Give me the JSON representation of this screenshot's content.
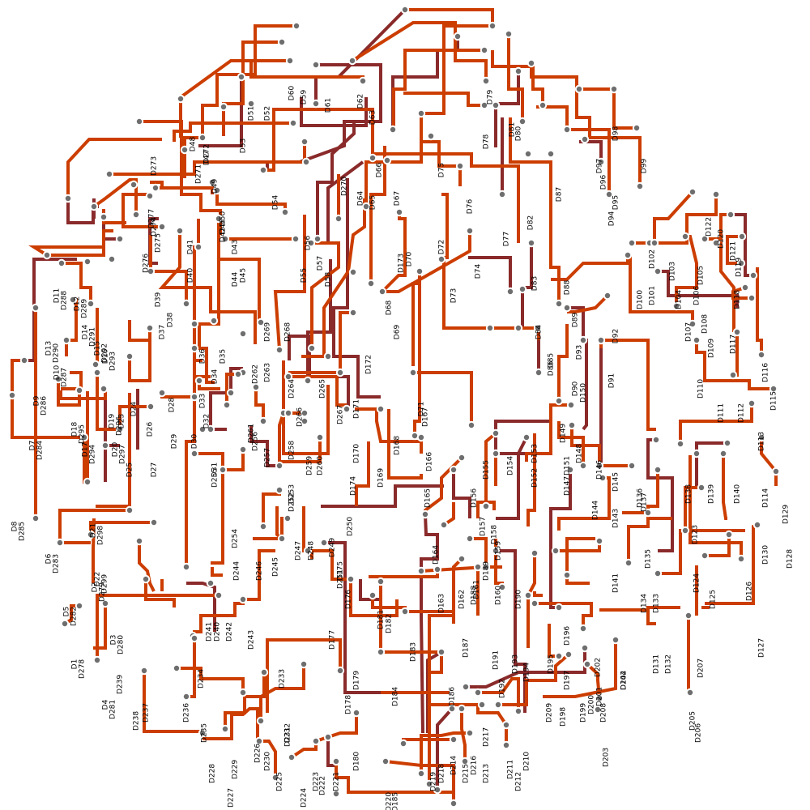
{
  "diagram": {
    "colors": {
      "wire_primary": "#cc3d00",
      "wire_secondary": "#8a2a2a",
      "pin": "#6e6e6e",
      "background": "#ffffff"
    },
    "labels": [
      "D1",
      "D2",
      "D3",
      "D4",
      "D5",
      "D6",
      "D7",
      "D8",
      "D9",
      "D10",
      "D11",
      "D12",
      "D13",
      "D14",
      "D15",
      "D16",
      "D17",
      "D18",
      "D19",
      "D20",
      "D21",
      "D22",
      "D23",
      "D24",
      "D25",
      "D26",
      "D27",
      "D28",
      "D29",
      "D30",
      "D31",
      "D32",
      "D33",
      "D34",
      "D35",
      "D36",
      "D37",
      "D38",
      "D39",
      "D40",
      "D41",
      "D42",
      "D43",
      "D44",
      "D45",
      "D46",
      "D47",
      "D48",
      "D49",
      "D50",
      "D51",
      "D52",
      "D53",
      "D54",
      "D55",
      "D56",
      "D57",
      "D58",
      "D59",
      "D60",
      "D61",
      "D62",
      "D63",
      "D64",
      "D65",
      "D66",
      "D67",
      "D68",
      "D69",
      "D70",
      "D71",
      "D72",
      "D73",
      "D74",
      "D75",
      "D76",
      "D77",
      "D78",
      "D79",
      "D80",
      "D81",
      "D82",
      "D83",
      "D84",
      "D85",
      "D86",
      "D87",
      "D88",
      "D89",
      "D90",
      "D91",
      "D92",
      "D93",
      "D94",
      "D95",
      "D96",
      "D97",
      "D98",
      "D99",
      "D100",
      "D101",
      "D102",
      "D103",
      "D104",
      "D105",
      "D106",
      "D107",
      "D108",
      "D109",
      "D110",
      "D111",
      "D112",
      "D113",
      "D114",
      "D115",
      "D116",
      "D117",
      "D118",
      "D119",
      "D120",
      "D121",
      "D122",
      "D123",
      "D124",
      "D125",
      "D126",
      "D127",
      "D128",
      "D129",
      "D130",
      "D131",
      "D132",
      "D133",
      "D134",
      "D135",
      "D136",
      "D137",
      "D138",
      "D139",
      "D140",
      "D141",
      "D142",
      "D143",
      "D144",
      "D145",
      "D146",
      "D147",
      "D148",
      "D149",
      "D150",
      "D151",
      "D152",
      "D153",
      "D154",
      "D155",
      "D156",
      "D157",
      "D158",
      "D159",
      "D160",
      "D161",
      "D162",
      "D163",
      "D164",
      "D165",
      "D166",
      "D167",
      "D168",
      "D169",
      "D170",
      "D171",
      "D172",
      "D173",
      "D174",
      "D175",
      "D176",
      "D177",
      "D178",
      "D179",
      "D180",
      "D181",
      "D182",
      "D183",
      "D184",
      "D185",
      "D186",
      "D187",
      "D188",
      "D189",
      "D190",
      "D191",
      "D192",
      "D193",
      "D194",
      "D195",
      "D196",
      "D197",
      "D198",
      "D199",
      "D200",
      "D201",
      "D202",
      "D203",
      "D204",
      "D205",
      "D206",
      "D207",
      "D208",
      "D209",
      "D210",
      "D211",
      "D212",
      "D213",
      "D214",
      "D215",
      "D216",
      "D217",
      "D218",
      "D219",
      "D220",
      "D221",
      "D222",
      "D223",
      "D224",
      "D225",
      "D226",
      "D227",
      "D228",
      "D229",
      "D230",
      "D231",
      "D232",
      "D233",
      "D234",
      "D235",
      "D236",
      "D237",
      "D238",
      "D239",
      "D240",
      "D241",
      "D242",
      "D243",
      "D244",
      "D245",
      "D246",
      "D247",
      "D248",
      "D249",
      "D250",
      "D251",
      "D252",
      "D253",
      "D254",
      "D255",
      "D256",
      "D257",
      "D258",
      "D259",
      "D260",
      "D261",
      "D262",
      "D263",
      "D264",
      "D265",
      "D266",
      "D267",
      "D268",
      "D269",
      "D270",
      "D271",
      "D272",
      "D273",
      "D274",
      "D275",
      "D276",
      "D277",
      "D278",
      "D279",
      "D280",
      "D281",
      "D282",
      "D283",
      "D284",
      "D285",
      "D286",
      "D287",
      "D288",
      "D289",
      "D290",
      "D291",
      "D292",
      "D293",
      "D294",
      "D295",
      "D296",
      "D297",
      "D298",
      "D299"
    ]
  }
}
